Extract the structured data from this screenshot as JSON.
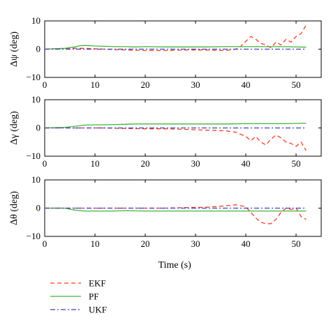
{
  "colors": {
    "EKF": "#ff3b1f",
    "PF": "#44b33a",
    "UKF": "#3f3fbf",
    "axis": "#000000",
    "background": "#ffffff"
  },
  "chart_data": [
    {
      "type": "line",
      "ylabel": "Δψ (deg)",
      "xlabel": "",
      "xlim": [
        0,
        55
      ],
      "ylim": [
        -10,
        10
      ],
      "xticks": [
        "0",
        "10",
        "20",
        "30",
        "40",
        "50"
      ],
      "yticks": [
        "−10",
        "0",
        "10"
      ],
      "series": [
        {
          "name": "EKF",
          "style": "dashed",
          "x": [
            0,
            4,
            8,
            12,
            16,
            20,
            24,
            28,
            32,
            36,
            38,
            39,
            41,
            42,
            43,
            44,
            45,
            46,
            47,
            48,
            49,
            50,
            51,
            52
          ],
          "y": [
            0,
            0.3,
            0.3,
            0,
            -0.3,
            -0.5,
            -0.5,
            -0.3,
            -0.3,
            -0.5,
            0,
            1,
            4.5,
            3.5,
            2,
            1.5,
            0.5,
            2.5,
            1.5,
            3.5,
            2.5,
            4.5,
            5.5,
            8.5
          ]
        },
        {
          "name": "PF",
          "style": "solid",
          "x": [
            0,
            4,
            6,
            7,
            8,
            10,
            12,
            14,
            16,
            18,
            20,
            24,
            28,
            32,
            36,
            40,
            44,
            48,
            52
          ],
          "y": [
            0,
            0.3,
            0.8,
            1.2,
            1.3,
            1.1,
            1.0,
            0.9,
            0.9,
            0.8,
            0.9,
            0.8,
            0.8,
            0.8,
            0.9,
            0.9,
            0.9,
            0.9,
            0.7
          ]
        },
        {
          "name": "UKF",
          "style": "dashdot",
          "x": [
            0,
            52
          ],
          "y": [
            0,
            0
          ]
        }
      ]
    },
    {
      "type": "line",
      "ylabel": "Δγ (deg)",
      "xlabel": "",
      "xlim": [
        0,
        55
      ],
      "ylim": [
        -10,
        10
      ],
      "xticks": [
        "0",
        "10",
        "20",
        "30",
        "40",
        "50"
      ],
      "yticks": [
        "−10",
        "0",
        "10"
      ],
      "series": [
        {
          "name": "EKF",
          "style": "dashed",
          "x": [
            0,
            4,
            8,
            12,
            16,
            20,
            24,
            28,
            32,
            36,
            38,
            40,
            41,
            42,
            43,
            44,
            45,
            46,
            47,
            48,
            49,
            50,
            51,
            52
          ],
          "y": [
            0,
            0,
            0,
            0,
            -0.2,
            -0.3,
            -0.3,
            -0.5,
            -0.8,
            -1.0,
            -1.5,
            -3,
            -4.5,
            -3,
            -5,
            -6,
            -4,
            -2.5,
            -3.5,
            -5,
            -5.5,
            -6.5,
            -5,
            -8
          ]
        },
        {
          "name": "PF",
          "style": "solid",
          "x": [
            0,
            4,
            6,
            8,
            10,
            12,
            14,
            16,
            18,
            20,
            24,
            28,
            32,
            36,
            40,
            44,
            48,
            52
          ],
          "y": [
            0,
            0.2,
            0.6,
            1.0,
            1.1,
            1.1,
            1.2,
            1.3,
            1.4,
            1.4,
            1.4,
            1.4,
            1.4,
            1.4,
            1.5,
            1.5,
            1.5,
            1.7
          ]
        },
        {
          "name": "UKF",
          "style": "dashdot",
          "x": [
            0,
            52
          ],
          "y": [
            0,
            0
          ]
        }
      ]
    },
    {
      "type": "line",
      "ylabel": "Δθ (deg)",
      "xlabel": "Time (s)",
      "xlim": [
        0,
        55
      ],
      "ylim": [
        -10,
        10
      ],
      "xticks": [
        "0",
        "10",
        "20",
        "30",
        "40",
        "50"
      ],
      "yticks": [
        "−10",
        "0",
        "10"
      ],
      "series": [
        {
          "name": "EKF",
          "style": "dashed",
          "x": [
            0,
            4,
            8,
            12,
            16,
            20,
            24,
            28,
            32,
            36,
            38,
            40,
            41,
            42,
            43,
            44,
            45,
            46,
            47,
            48,
            49,
            50,
            51,
            52
          ],
          "y": [
            0,
            0,
            0,
            0,
            0,
            0,
            0,
            0.2,
            0.3,
            0.8,
            1.2,
            0.5,
            -1.5,
            -3.5,
            -5,
            -5.5,
            -5.5,
            -4,
            -1.5,
            0,
            -0.5,
            0,
            -3,
            -4
          ]
        },
        {
          "name": "PF",
          "style": "solid",
          "x": [
            0,
            4,
            6,
            8,
            10,
            12,
            14,
            16,
            20,
            24,
            28,
            32,
            36,
            40,
            44,
            48,
            52
          ],
          "y": [
            0,
            0,
            -0.7,
            -1.0,
            -1.0,
            -1.0,
            -1.0,
            -0.9,
            -1.0,
            -1.0,
            -1.0,
            -1.0,
            -1.0,
            -1.0,
            -1.0,
            -1.0,
            -1.0
          ]
        },
        {
          "name": "UKF",
          "style": "dashdot",
          "x": [
            0,
            52
          ],
          "y": [
            0,
            0
          ]
        }
      ]
    }
  ],
  "legend": [
    {
      "label": "EKF",
      "style": "dashed"
    },
    {
      "label": "PF",
      "style": "solid"
    },
    {
      "label": "UKF",
      "style": "dashdot"
    }
  ]
}
